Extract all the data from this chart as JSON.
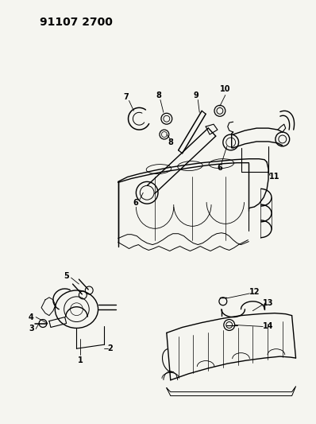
{
  "title": "91107 2700",
  "bg_color": "#f5f5f0",
  "title_fontsize": 10,
  "title_fontweight": "bold",
  "figsize": [
    3.98,
    5.33
  ],
  "dpi": 100
}
